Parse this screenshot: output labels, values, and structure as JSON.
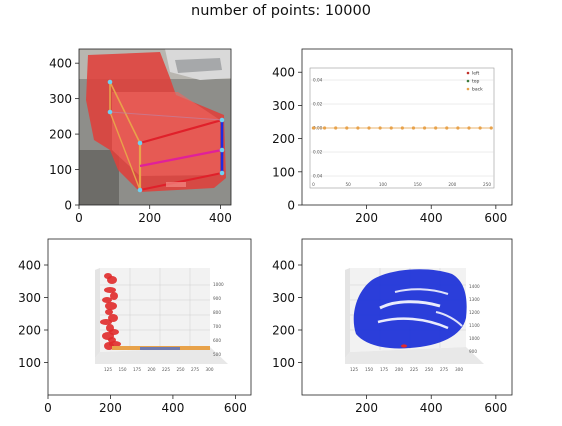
{
  "figure": {
    "title": "number of points: 10000"
  },
  "colors": {
    "truck_overlay": "#e0403a",
    "left": "#c0302a",
    "top": "#3c7a3c",
    "back": "#e8a24a",
    "blue_points": "#1a2fd8",
    "red_points": "#e02a2a"
  },
  "chart_data": [
    {
      "id": "image-panel",
      "type": "image",
      "content": "truck image with red overlay and 3D bounding box",
      "xticks": [
        0,
        200,
        400
      ],
      "yticks": [
        0,
        100,
        200,
        300,
        400
      ],
      "xlim": [
        0,
        430
      ],
      "ylim": [
        440,
        0
      ]
    },
    {
      "id": "projection-panel",
      "type": "image",
      "content": "embedded line plot of back points",
      "xticks": [
        200,
        400,
        600
      ],
      "yticks": [
        0,
        100,
        200,
        300,
        400
      ],
      "xlim": [
        0,
        650
      ],
      "ylim": [
        470,
        0
      ],
      "inner_plot": {
        "type": "scatter",
        "legend": [
          "left",
          "top",
          "back"
        ],
        "legend_position": "top-right",
        "xticks": [
          "0",
          "50",
          "100",
          "150",
          "200",
          "250"
        ],
        "yticks": [
          "0.04",
          "0.02",
          "0.00",
          "0.02",
          "0.04"
        ],
        "series": [
          {
            "name": "back",
            "x": [
              0,
              16,
              32,
              48,
              64,
              80,
              96,
              112,
              128,
              144,
              160,
              176,
              192,
              208,
              224,
              240,
              256
            ],
            "y": [
              0,
              0,
              0,
              0,
              0,
              0,
              0,
              0,
              0,
              0,
              0,
              0,
              0,
              0,
              0,
              0,
              0
            ]
          }
        ],
        "xlim": [
          -5,
          260
        ],
        "ylim": [
          -0.05,
          0.05
        ]
      }
    },
    {
      "id": "point-cloud-red",
      "type": "image",
      "content": "3D scatter of red points with orange/blue base",
      "xticks": [
        0,
        200,
        400,
        600
      ],
      "yticks": [
        100,
        200,
        300,
        400
      ],
      "xlim": [
        0,
        650
      ],
      "ylim": [
        480,
        0
      ],
      "inner_ticks_x": [
        "125",
        "150",
        "175",
        "200",
        "225",
        "250",
        "275",
        "300"
      ],
      "inner_ticks_z": [
        "1000",
        "900",
        "800",
        "700",
        "600",
        "500"
      ]
    },
    {
      "id": "point-cloud-blue",
      "type": "image",
      "content": "3D scatter of blue points",
      "xticks": [
        200,
        400,
        600
      ],
      "yticks": [
        100,
        200,
        300,
        400
      ],
      "xlim": [
        0,
        650
      ],
      "ylim": [
        480,
        0
      ],
      "inner_ticks_x": [
        "125",
        "150",
        "175",
        "200",
        "225",
        "250",
        "275",
        "300"
      ],
      "inner_ticks_z": [
        "1400",
        "1300",
        "1200",
        "1100",
        "1000",
        "900"
      ]
    }
  ]
}
